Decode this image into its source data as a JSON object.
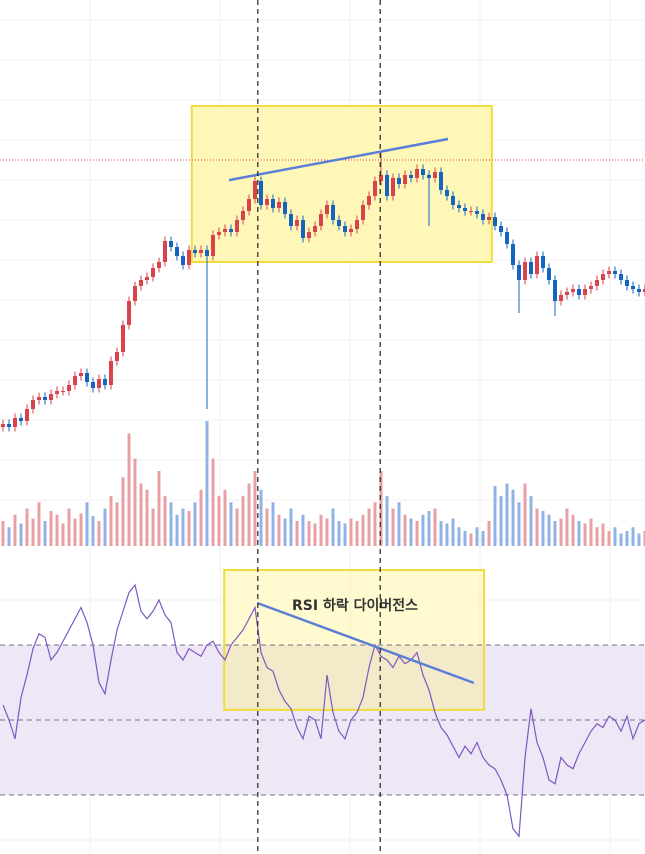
{
  "chart_data": [
    {
      "type": "candlestick",
      "colors": {
        "up": "#d9434c",
        "down": "#1565c0",
        "trendline": "#5b7fd6",
        "highlight_fill": "#fff7b8",
        "highlight_border": "#f0dc3c",
        "last_price_line": "#d9434c"
      },
      "closes": [
        12,
        11,
        14,
        13,
        17,
        20,
        21,
        20,
        22,
        23,
        23,
        25,
        28,
        29,
        26,
        24,
        27,
        25,
        33,
        36,
        45,
        53,
        58,
        60,
        61,
        64,
        66,
        73,
        71,
        68,
        65,
        70,
        69,
        70,
        68,
        75,
        76,
        77,
        76,
        80,
        83,
        87,
        93,
        85,
        87,
        84,
        86,
        82,
        78,
        80,
        74,
        76,
        78,
        82,
        85,
        80,
        78,
        76,
        77,
        80,
        85,
        88,
        93,
        95,
        88,
        94,
        92,
        95,
        94,
        97,
        95,
        94,
        96,
        90,
        88,
        85,
        84,
        83,
        83,
        82,
        80,
        81,
        78,
        76,
        72,
        65,
        60,
        66,
        62,
        68,
        64,
        60,
        53,
        55,
        56,
        57,
        55,
        57,
        58,
        60,
        62,
        63,
        62,
        60,
        58,
        57,
        56,
        57
      ],
      "long_wicks": [
        {
          "index": 34,
          "low": 17
        },
        {
          "index": 63,
          "high": 103
        },
        {
          "index": 71,
          "low": 78
        },
        {
          "index": 86,
          "low": 49
        },
        {
          "index": 92,
          "low": 48
        }
      ],
      "last_price_level": 100,
      "trendline": {
        "start": {
          "index": 38,
          "value": 93.3
        },
        "end": {
          "index": 74.5,
          "value": 107
        }
      },
      "highlight_box": {
        "index_from": 31.8,
        "index_to": 81.8,
        "value_from": 66,
        "value_to": 118
      },
      "vertical_markers": [
        42.8,
        63.2
      ],
      "volume": [
        20,
        15,
        25,
        18,
        30,
        22,
        35,
        20,
        28,
        25,
        18,
        30,
        22,
        26,
        35,
        24,
        20,
        30,
        40,
        35,
        55,
        90,
        70,
        50,
        45,
        30,
        60,
        40,
        35,
        25,
        30,
        28,
        35,
        45,
        100,
        70,
        40,
        45,
        35,
        30,
        40,
        50,
        60,
        45,
        30,
        35,
        25,
        22,
        30,
        20,
        25,
        20,
        18,
        25,
        22,
        30,
        20,
        18,
        22,
        20,
        25,
        30,
        35,
        60,
        40,
        30,
        35,
        25,
        22,
        20,
        25,
        28,
        30,
        20,
        18,
        22,
        15,
        12,
        10,
        15,
        12,
        20,
        48,
        40,
        50,
        45,
        35,
        50,
        40,
        30,
        28,
        25,
        20,
        22,
        30,
        25,
        20,
        18,
        22,
        15,
        18,
        12,
        15,
        10,
        12,
        15,
        10,
        12
      ]
    },
    {
      "type": "line",
      "indicator": "RSI",
      "color": "#7e57c2",
      "band": {
        "upper": 70,
        "middle": 50,
        "lower": 30,
        "fill": "#ede7f6"
      },
      "values": [
        54,
        50,
        45,
        56,
        62,
        69,
        73,
        72,
        66,
        68,
        71,
        74,
        77,
        80,
        76,
        70,
        60,
        57,
        66,
        74,
        79,
        84,
        86,
        79,
        77,
        79,
        82,
        78,
        76,
        68,
        66,
        69,
        68,
        67,
        70,
        71,
        68,
        66,
        70,
        72,
        74,
        77,
        80,
        68,
        64,
        63,
        58,
        55,
        53,
        48,
        45,
        51,
        50,
        45,
        62,
        52,
        47,
        45,
        50,
        52,
        56,
        64,
        70,
        67,
        66,
        64,
        67,
        65,
        66,
        68,
        62,
        58,
        52,
        48,
        46,
        43,
        40,
        43,
        41,
        44,
        40,
        38,
        37,
        34,
        30,
        21,
        19,
        40,
        53,
        44,
        40,
        34,
        33,
        40,
        38,
        37,
        41,
        44,
        47,
        49,
        48,
        51,
        50,
        47,
        51,
        45,
        49,
        50
      ],
      "trendline": {
        "start": {
          "index": 42.7,
          "value": 81.2
        },
        "end": {
          "index": 78.8,
          "value": 59.9
        }
      },
      "highlight_box": {
        "index_from": 37.2,
        "index_to": 80.5,
        "value_from": 52.7,
        "value_to": 90
      },
      "annotation": "RSI 하락 다이버전스"
    }
  ]
}
